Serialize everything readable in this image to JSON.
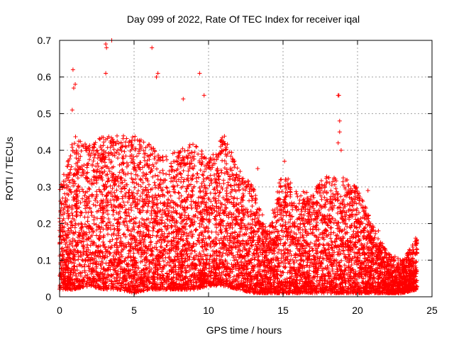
{
  "chart_data": {
    "type": "scatter",
    "title": "Day 099 of 2022, Rate Of TEC Index for receiver iqal",
    "xlabel": "GPS time / hours",
    "ylabel": "ROTI / TECUs",
    "xlim": [
      0,
      25
    ],
    "ylim": [
      0,
      0.7
    ],
    "xticks": [
      0,
      5,
      10,
      15,
      20,
      25
    ],
    "yticks": [
      0,
      0.1,
      0.2,
      0.3,
      0.4,
      0.5,
      0.6,
      0.7
    ],
    "ytick_labels": [
      "0",
      "0.1",
      "0.2",
      "0.3",
      "0.4",
      "0.5",
      "0.6",
      "0.7"
    ],
    "grid": true,
    "marker": "+",
    "color": "#ff0000",
    "x_max_data": 24,
    "envelope_hours": [
      0,
      1,
      2,
      3,
      4,
      5,
      6,
      7,
      8,
      9,
      10,
      11,
      12,
      13,
      14,
      15,
      16,
      17,
      18,
      19,
      20,
      21,
      22,
      23,
      24
    ],
    "envelope_upper": [
      0.3,
      0.44,
      0.42,
      0.44,
      0.44,
      0.44,
      0.42,
      0.38,
      0.4,
      0.42,
      0.38,
      0.45,
      0.35,
      0.3,
      0.18,
      0.36,
      0.28,
      0.3,
      0.33,
      0.33,
      0.3,
      0.2,
      0.12,
      0.1,
      0.16
    ],
    "envelope_lower": [
      0.02,
      0.02,
      0.03,
      0.02,
      0.02,
      0.01,
      0.02,
      0.02,
      0.02,
      0.02,
      0.03,
      0.03,
      0.02,
      0.01,
      0.01,
      0.01,
      0.01,
      0.01,
      0.01,
      0.01,
      0.01,
      0.01,
      0.01,
      0.01,
      0.02
    ],
    "outliers": [
      {
        "x": 0.9,
        "y": 0.62
      },
      {
        "x": 0.95,
        "y": 0.57
      },
      {
        "x": 0.85,
        "y": 0.51
      },
      {
        "x": 1.05,
        "y": 0.58
      },
      {
        "x": 3.1,
        "y": 0.61
      },
      {
        "x": 3.1,
        "y": 0.69
      },
      {
        "x": 3.15,
        "y": 0.68
      },
      {
        "x": 3.5,
        "y": 0.7
      },
      {
        "x": 6.2,
        "y": 0.68
      },
      {
        "x": 6.5,
        "y": 0.6
      },
      {
        "x": 6.6,
        "y": 0.61
      },
      {
        "x": 8.3,
        "y": 0.54
      },
      {
        "x": 9.4,
        "y": 0.61
      },
      {
        "x": 9.7,
        "y": 0.55
      },
      {
        "x": 18.7,
        "y": 0.55
      },
      {
        "x": 18.75,
        "y": 0.55
      },
      {
        "x": 18.8,
        "y": 0.48
      },
      {
        "x": 18.8,
        "y": 0.45
      },
      {
        "x": 18.7,
        "y": 0.42
      },
      {
        "x": 18.9,
        "y": 0.4
      },
      {
        "x": 15.1,
        "y": 0.37
      },
      {
        "x": 13.3,
        "y": 0.35
      },
      {
        "x": 20.7,
        "y": 0.29
      },
      {
        "x": 21.4,
        "y": 0.18
      },
      {
        "x": 23.9,
        "y": 0.16
      }
    ]
  }
}
